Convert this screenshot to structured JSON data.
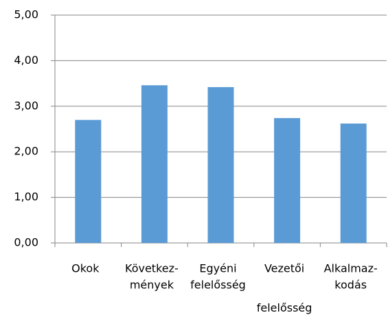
{
  "chart_data": {
    "type": "bar",
    "categories": [
      [
        "Okok"
      ],
      [
        "Következ-",
        "mények"
      ],
      [
        "Egyéni",
        "felelősség"
      ],
      [
        "Vezetői",
        "felelősség"
      ],
      [
        "Alkalmaz-",
        "kodás"
      ]
    ],
    "values": [
      2.7,
      3.46,
      3.42,
      2.74,
      2.62
    ],
    "color": "#5b9bd5",
    "ylim": [
      0,
      5
    ],
    "yticks": [
      {
        "value": 0,
        "label": "0,00"
      },
      {
        "value": 1,
        "label": "1,00"
      },
      {
        "value": 2,
        "label": "2,00"
      },
      {
        "value": 3,
        "label": "3,00"
      },
      {
        "value": 4,
        "label": "4,00"
      },
      {
        "value": 5,
        "label": "5,00"
      }
    ],
    "grid": true
  }
}
